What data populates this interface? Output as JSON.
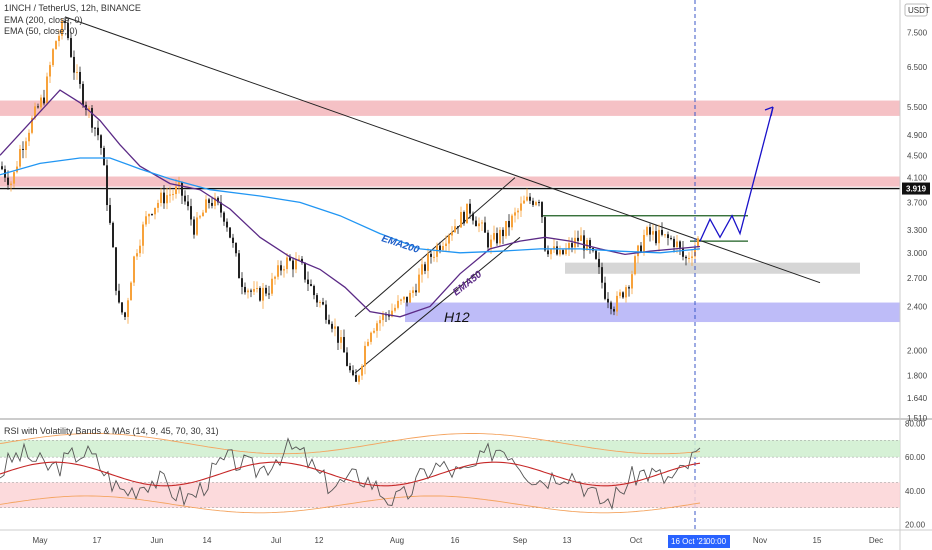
{
  "header": {
    "symbol": "1INCH / TetherUS, 12h, BINANCE",
    "ema200": "EMA (200, close, 0)",
    "ema50": "EMA (50, close, 0)",
    "rsi_title": "RSI with Volatility Bands & MAs (14, 9, 45, 70, 30, 31)",
    "currency": "USDT",
    "last_price": "3.919",
    "crosshair_date": "16 Oct '21",
    "crosshair_time": "00:00"
  },
  "annotations": {
    "ema200": "EMA200",
    "ema50": "EMA50",
    "h12": "H12"
  },
  "colors": {
    "ema200": "#2196f3",
    "ema50": "#5b2a86",
    "up": "#f7a23b",
    "down": "#222222",
    "red_zone": "#f3b6bb",
    "blue_zone": "#b3b0f7",
    "gray_zone": "#cfcfcf",
    "projection": "#1a12c9"
  },
  "chart_data": [
    {
      "type": "line",
      "title": "1INCH / TetherUS, 12h, BINANCE",
      "x_ticks": [
        "May",
        "17",
        "Jun",
        "14",
        "Jul",
        "12",
        "Aug",
        "16",
        "Sep",
        "13",
        "Oct",
        "Nov",
        "15",
        "Dec"
      ],
      "y_ticks": [
        7.5,
        6.5,
        5.5,
        4.9,
        4.5,
        4.1,
        3.7,
        3.3,
        3.0,
        2.7,
        2.4,
        2.0,
        1.8,
        1.64,
        1.51
      ],
      "y_tick_labels": [
        "7.500",
        "6.500",
        "5.500",
        "4.900",
        "4.500",
        "4.100",
        "3.700",
        "3.300",
        "3.000",
        "2.700",
        "2.400",
        "2.000",
        "1.800",
        "1.640",
        "1.510"
      ],
      "ylim": [
        1.51,
        8.3
      ],
      "log_scale": true,
      "series": [
        {
          "name": "EMA (50, close, 0)",
          "color": "#5b2a86",
          "points": [
            [
              0,
              4.5
            ],
            [
              60,
              5.9
            ],
            [
              80,
              5.6
            ],
            [
              100,
              5.2
            ],
            [
              120,
              4.7
            ],
            [
              140,
              4.3
            ],
            [
              170,
              4.0
            ],
            [
              200,
              3.9
            ],
            [
              230,
              3.6
            ],
            [
              260,
              3.2
            ],
            [
              290,
              2.95
            ],
            [
              320,
              2.8
            ],
            [
              345,
              2.6
            ],
            [
              370,
              2.35
            ],
            [
              400,
              2.3
            ],
            [
              430,
              2.4
            ],
            [
              460,
              2.75
            ],
            [
              490,
              3.05
            ],
            [
              520,
              3.15
            ],
            [
              545,
              3.2
            ],
            [
              570,
              3.15
            ],
            [
              600,
              3.05
            ],
            [
              625,
              2.98
            ],
            [
              650,
              3.02
            ],
            [
              675,
              3.05
            ],
            [
              700,
              3.08
            ]
          ]
        },
        {
          "name": "EMA (200, close, 0)",
          "color": "#2196f3",
          "points": [
            [
              0,
              4.15
            ],
            [
              40,
              4.35
            ],
            [
              80,
              4.45
            ],
            [
              110,
              4.45
            ],
            [
              140,
              4.25
            ],
            [
              170,
              4.08
            ],
            [
              210,
              3.9
            ],
            [
              260,
              3.8
            ],
            [
              300,
              3.7
            ],
            [
              340,
              3.5
            ],
            [
              380,
              3.25
            ],
            [
              420,
              3.05
            ],
            [
              460,
              3.0
            ],
            [
              500,
              3.02
            ],
            [
              540,
              3.05
            ],
            [
              580,
              3.05
            ],
            [
              620,
              3.02
            ],
            [
              660,
              3.0
            ],
            [
              700,
              3.05
            ]
          ]
        }
      ],
      "candles": [],
      "trendlines": [
        {
          "from": [
            65,
            8.0
          ],
          "to": [
            820,
            2.65
          ]
        },
        {
          "from": [
            355,
            1.82
          ],
          "to": [
            520,
            3.2
          ]
        },
        {
          "from": [
            355,
            2.3
          ],
          "to": [
            515,
            4.1
          ]
        }
      ],
      "zones": [
        {
          "kind": "resistance",
          "from": 5.3,
          "to": 5.65,
          "color": "#f3b6bb"
        },
        {
          "kind": "resistance",
          "from": 3.95,
          "to": 4.12,
          "color": "#f3b6bb"
        },
        {
          "kind": "support",
          "from": 2.25,
          "to": 2.44,
          "color": "#b3b0f7",
          "label": "H12"
        },
        {
          "kind": "range",
          "from": 2.75,
          "to": 2.88,
          "color": "#cfcfcf"
        }
      ],
      "range_lines": [
        3.5,
        3.15
      ],
      "horizontal_level": 3.919,
      "projection": [
        [
          700,
          3.15
        ],
        [
          710,
          3.45
        ],
        [
          720,
          3.2
        ],
        [
          732,
          3.5
        ],
        [
          740,
          3.25
        ],
        [
          773,
          5.5
        ]
      ]
    },
    {
      "type": "line",
      "title": "RSI with Volatility Bands & MAs (14, 9, 45, 70, 30, 31)",
      "y_ticks": [
        80,
        60,
        40,
        20
      ],
      "y_tick_labels": [
        "80.00",
        "60.00",
        "40.00",
        "20.00"
      ],
      "ylim": [
        18,
        82
      ],
      "bands": [
        {
          "name": "overbought",
          "from": 60,
          "to": 70,
          "color": "#cfeecf"
        },
        {
          "name": "oversold",
          "from": 30,
          "to": 45,
          "color": "#fbd3d6"
        }
      ]
    }
  ]
}
